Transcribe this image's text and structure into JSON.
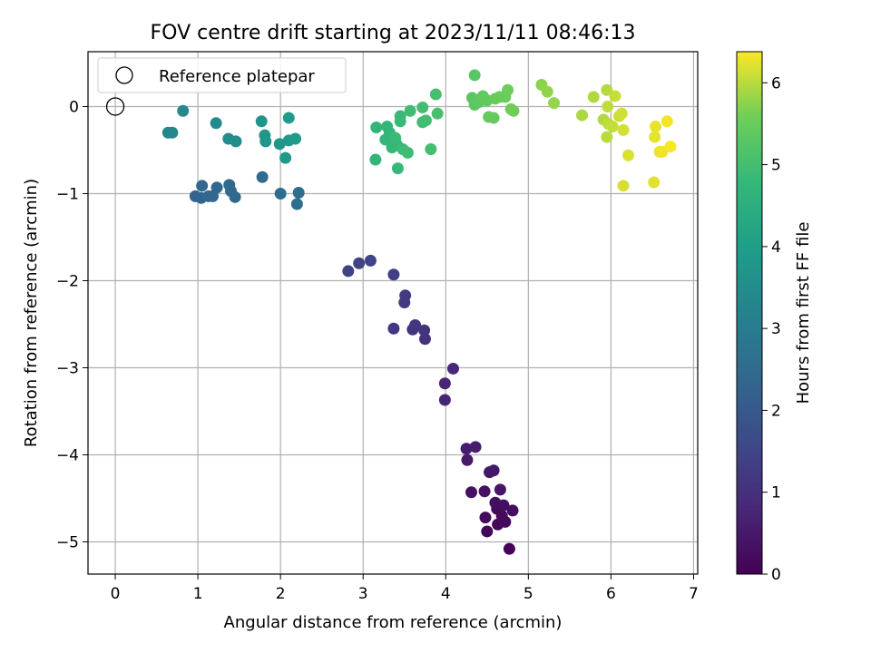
{
  "chart_data": {
    "type": "scatter",
    "title": "FOV centre drift starting at 2023/11/11 08:46:13",
    "xlabel": "Angular distance from reference (arcmin)",
    "ylabel": "Rotation from reference (arcmin)",
    "xlim": [
      -0.33,
      7.05
    ],
    "ylim": [
      -5.37,
      0.63
    ],
    "xticks": [
      0,
      1,
      2,
      3,
      4,
      5,
      6,
      7
    ],
    "yticks": [
      0,
      -1,
      -2,
      -3,
      -4,
      -5
    ],
    "grid": true,
    "legend": {
      "placement": "upper-left",
      "entries": [
        "Reference platepar"
      ]
    },
    "reference_point": {
      "x": 0,
      "y": 0
    },
    "colorbar": {
      "label": "Hours from first FF file",
      "min": 0,
      "max": 6.38,
      "ticks": [
        0,
        1,
        2,
        3,
        4,
        5,
        6
      ],
      "colormap": "viridis"
    },
    "points": [
      {
        "x": 4.77,
        "y": -5.08,
        "h": 0.05
      },
      {
        "x": 4.5,
        "y": -4.88,
        "h": 0.1
      },
      {
        "x": 4.63,
        "y": -4.8,
        "h": 0.12
      },
      {
        "x": 4.72,
        "y": -4.77,
        "h": 0.15
      },
      {
        "x": 4.68,
        "y": -4.7,
        "h": 0.18
      },
      {
        "x": 4.48,
        "y": -4.72,
        "h": 0.2
      },
      {
        "x": 4.62,
        "y": -4.62,
        "h": 0.22
      },
      {
        "x": 4.81,
        "y": -4.64,
        "h": 0.25
      },
      {
        "x": 4.6,
        "y": -4.55,
        "h": 0.28
      },
      {
        "x": 4.7,
        "y": -4.58,
        "h": 0.3
      },
      {
        "x": 4.31,
        "y": -4.43,
        "h": 0.33
      },
      {
        "x": 4.47,
        "y": -4.42,
        "h": 0.36
      },
      {
        "x": 4.66,
        "y": -4.4,
        "h": 0.4
      },
      {
        "x": 4.53,
        "y": -4.2,
        "h": 0.45
      },
      {
        "x": 4.58,
        "y": -4.18,
        "h": 0.48
      },
      {
        "x": 4.26,
        "y": -4.06,
        "h": 0.52
      },
      {
        "x": 4.25,
        "y": -3.93,
        "h": 0.55
      },
      {
        "x": 4.36,
        "y": -3.91,
        "h": 0.58
      },
      {
        "x": 3.99,
        "y": -3.37,
        "h": 0.72
      },
      {
        "x": 3.99,
        "y": -3.18,
        "h": 0.76
      },
      {
        "x": 4.09,
        "y": -3.01,
        "h": 0.8
      },
      {
        "x": 3.75,
        "y": -2.67,
        "h": 1.05
      },
      {
        "x": 3.74,
        "y": -2.57,
        "h": 1.08
      },
      {
        "x": 3.6,
        "y": -2.56,
        "h": 1.1
      },
      {
        "x": 3.63,
        "y": -2.51,
        "h": 1.12
      },
      {
        "x": 3.37,
        "y": -2.55,
        "h": 1.15
      },
      {
        "x": 3.5,
        "y": -2.25,
        "h": 1.22
      },
      {
        "x": 3.51,
        "y": -2.17,
        "h": 1.25
      },
      {
        "x": 3.37,
        "y": -1.93,
        "h": 1.35
      },
      {
        "x": 2.82,
        "y": -1.89,
        "h": 1.42
      },
      {
        "x": 2.95,
        "y": -1.8,
        "h": 1.46
      },
      {
        "x": 3.09,
        "y": -1.77,
        "h": 1.5
      },
      {
        "x": 0.97,
        "y": -1.03,
        "h": 2.3
      },
      {
        "x": 1.04,
        "y": -1.05,
        "h": 2.32
      },
      {
        "x": 1.13,
        "y": -1.03,
        "h": 2.34
      },
      {
        "x": 1.18,
        "y": -1.03,
        "h": 2.36
      },
      {
        "x": 1.05,
        "y": -0.91,
        "h": 2.38
      },
      {
        "x": 1.23,
        "y": -0.93,
        "h": 2.4
      },
      {
        "x": 1.38,
        "y": -0.9,
        "h": 2.42
      },
      {
        "x": 1.45,
        "y": -1.04,
        "h": 2.44
      },
      {
        "x": 1.4,
        "y": -0.97,
        "h": 2.46
      },
      {
        "x": 1.78,
        "y": -0.81,
        "h": 2.52
      },
      {
        "x": 2.0,
        "y": -1.0,
        "h": 2.56
      },
      {
        "x": 2.2,
        "y": -1.12,
        "h": 2.58
      },
      {
        "x": 2.22,
        "y": -0.99,
        "h": 2.6
      },
      {
        "x": 0.64,
        "y": -0.3,
        "h": 3.3
      },
      {
        "x": 0.69,
        "y": -0.3,
        "h": 3.32
      },
      {
        "x": 0.82,
        "y": -0.05,
        "h": 3.36
      },
      {
        "x": 1.22,
        "y": -0.19,
        "h": 3.45
      },
      {
        "x": 1.37,
        "y": -0.37,
        "h": 3.5
      },
      {
        "x": 1.46,
        "y": -0.4,
        "h": 3.52
      },
      {
        "x": 1.77,
        "y": -0.17,
        "h": 3.72
      },
      {
        "x": 1.81,
        "y": -0.33,
        "h": 3.75
      },
      {
        "x": 1.82,
        "y": -0.4,
        "h": 3.77
      },
      {
        "x": 1.99,
        "y": -0.43,
        "h": 3.8
      },
      {
        "x": 2.06,
        "y": -0.59,
        "h": 3.82
      },
      {
        "x": 2.1,
        "y": -0.39,
        "h": 3.85
      },
      {
        "x": 2.18,
        "y": -0.37,
        "h": 3.87
      },
      {
        "x": 2.1,
        "y": -0.13,
        "h": 3.9
      },
      {
        "x": 3.15,
        "y": -0.61,
        "h": 4.68
      },
      {
        "x": 3.16,
        "y": -0.24,
        "h": 4.7
      },
      {
        "x": 3.29,
        "y": -0.23,
        "h": 4.72
      },
      {
        "x": 3.27,
        "y": -0.38,
        "h": 4.74
      },
      {
        "x": 3.32,
        "y": -0.3,
        "h": 4.76
      },
      {
        "x": 3.35,
        "y": -0.47,
        "h": 4.78
      },
      {
        "x": 3.41,
        "y": -0.44,
        "h": 4.8
      },
      {
        "x": 3.42,
        "y": -0.71,
        "h": 4.82
      },
      {
        "x": 3.45,
        "y": -0.17,
        "h": 4.84
      },
      {
        "x": 3.45,
        "y": -0.11,
        "h": 4.86
      },
      {
        "x": 3.39,
        "y": -0.36,
        "h": 4.88
      },
      {
        "x": 3.48,
        "y": -0.49,
        "h": 4.9
      },
      {
        "x": 3.54,
        "y": -0.53,
        "h": 4.92
      },
      {
        "x": 3.57,
        "y": -0.05,
        "h": 4.94
      },
      {
        "x": 3.72,
        "y": -0.18,
        "h": 4.96
      },
      {
        "x": 3.72,
        "y": -0.01,
        "h": 4.98
      },
      {
        "x": 3.76,
        "y": -0.16,
        "h": 5.0
      },
      {
        "x": 3.82,
        "y": -0.49,
        "h": 5.02
      },
      {
        "x": 3.88,
        "y": 0.14,
        "h": 5.04
      },
      {
        "x": 3.9,
        "y": -0.08,
        "h": 5.06
      },
      {
        "x": 4.35,
        "y": 0.36,
        "h": 5.3
      },
      {
        "x": 4.32,
        "y": 0.1,
        "h": 5.32
      },
      {
        "x": 4.35,
        "y": 0.02,
        "h": 5.34
      },
      {
        "x": 4.4,
        "y": 0.05,
        "h": 5.36
      },
      {
        "x": 4.45,
        "y": 0.12,
        "h": 5.38
      },
      {
        "x": 4.47,
        "y": 0.09,
        "h": 5.4
      },
      {
        "x": 4.5,
        "y": 0.07,
        "h": 5.42
      },
      {
        "x": 4.52,
        "y": -0.12,
        "h": 5.44
      },
      {
        "x": 4.58,
        "y": -0.13,
        "h": 5.46
      },
      {
        "x": 4.6,
        "y": 0.09,
        "h": 5.48
      },
      {
        "x": 4.65,
        "y": 0.11,
        "h": 5.5
      },
      {
        "x": 4.72,
        "y": 0.11,
        "h": 5.52
      },
      {
        "x": 4.75,
        "y": 0.19,
        "h": 5.54
      },
      {
        "x": 4.79,
        "y": -0.03,
        "h": 5.56
      },
      {
        "x": 4.82,
        "y": -0.05,
        "h": 5.58
      },
      {
        "x": 5.16,
        "y": 0.25,
        "h": 5.75
      },
      {
        "x": 5.23,
        "y": 0.17,
        "h": 5.77
      },
      {
        "x": 5.31,
        "y": 0.04,
        "h": 5.79
      },
      {
        "x": 5.65,
        "y": -0.1,
        "h": 5.92
      },
      {
        "x": 5.79,
        "y": 0.11,
        "h": 5.94
      },
      {
        "x": 5.91,
        "y": -0.15,
        "h": 5.96
      },
      {
        "x": 5.95,
        "y": 0.19,
        "h": 5.98
      },
      {
        "x": 5.95,
        "y": -0.35,
        "h": 6.0
      },
      {
        "x": 5.97,
        "y": -0.2,
        "h": 6.02
      },
      {
        "x": 5.96,
        "y": 0.0,
        "h": 6.04
      },
      {
        "x": 6.02,
        "y": -0.23,
        "h": 6.06
      },
      {
        "x": 6.05,
        "y": 0.12,
        "h": 6.08
      },
      {
        "x": 6.1,
        "y": -0.11,
        "h": 6.1
      },
      {
        "x": 6.13,
        "y": -0.08,
        "h": 6.12
      },
      {
        "x": 6.15,
        "y": -0.27,
        "h": 6.14
      },
      {
        "x": 6.15,
        "y": -0.91,
        "h": 6.16
      },
      {
        "x": 6.21,
        "y": -0.56,
        "h": 6.18
      },
      {
        "x": 6.52,
        "y": -0.87,
        "h": 6.22
      },
      {
        "x": 6.53,
        "y": -0.35,
        "h": 6.24
      },
      {
        "x": 6.54,
        "y": -0.23,
        "h": 6.26
      },
      {
        "x": 6.59,
        "y": -0.52,
        "h": 6.28
      },
      {
        "x": 6.62,
        "y": -0.52,
        "h": 6.3
      },
      {
        "x": 6.68,
        "y": -0.17,
        "h": 6.32
      },
      {
        "x": 6.72,
        "y": -0.46,
        "h": 6.35
      }
    ]
  }
}
